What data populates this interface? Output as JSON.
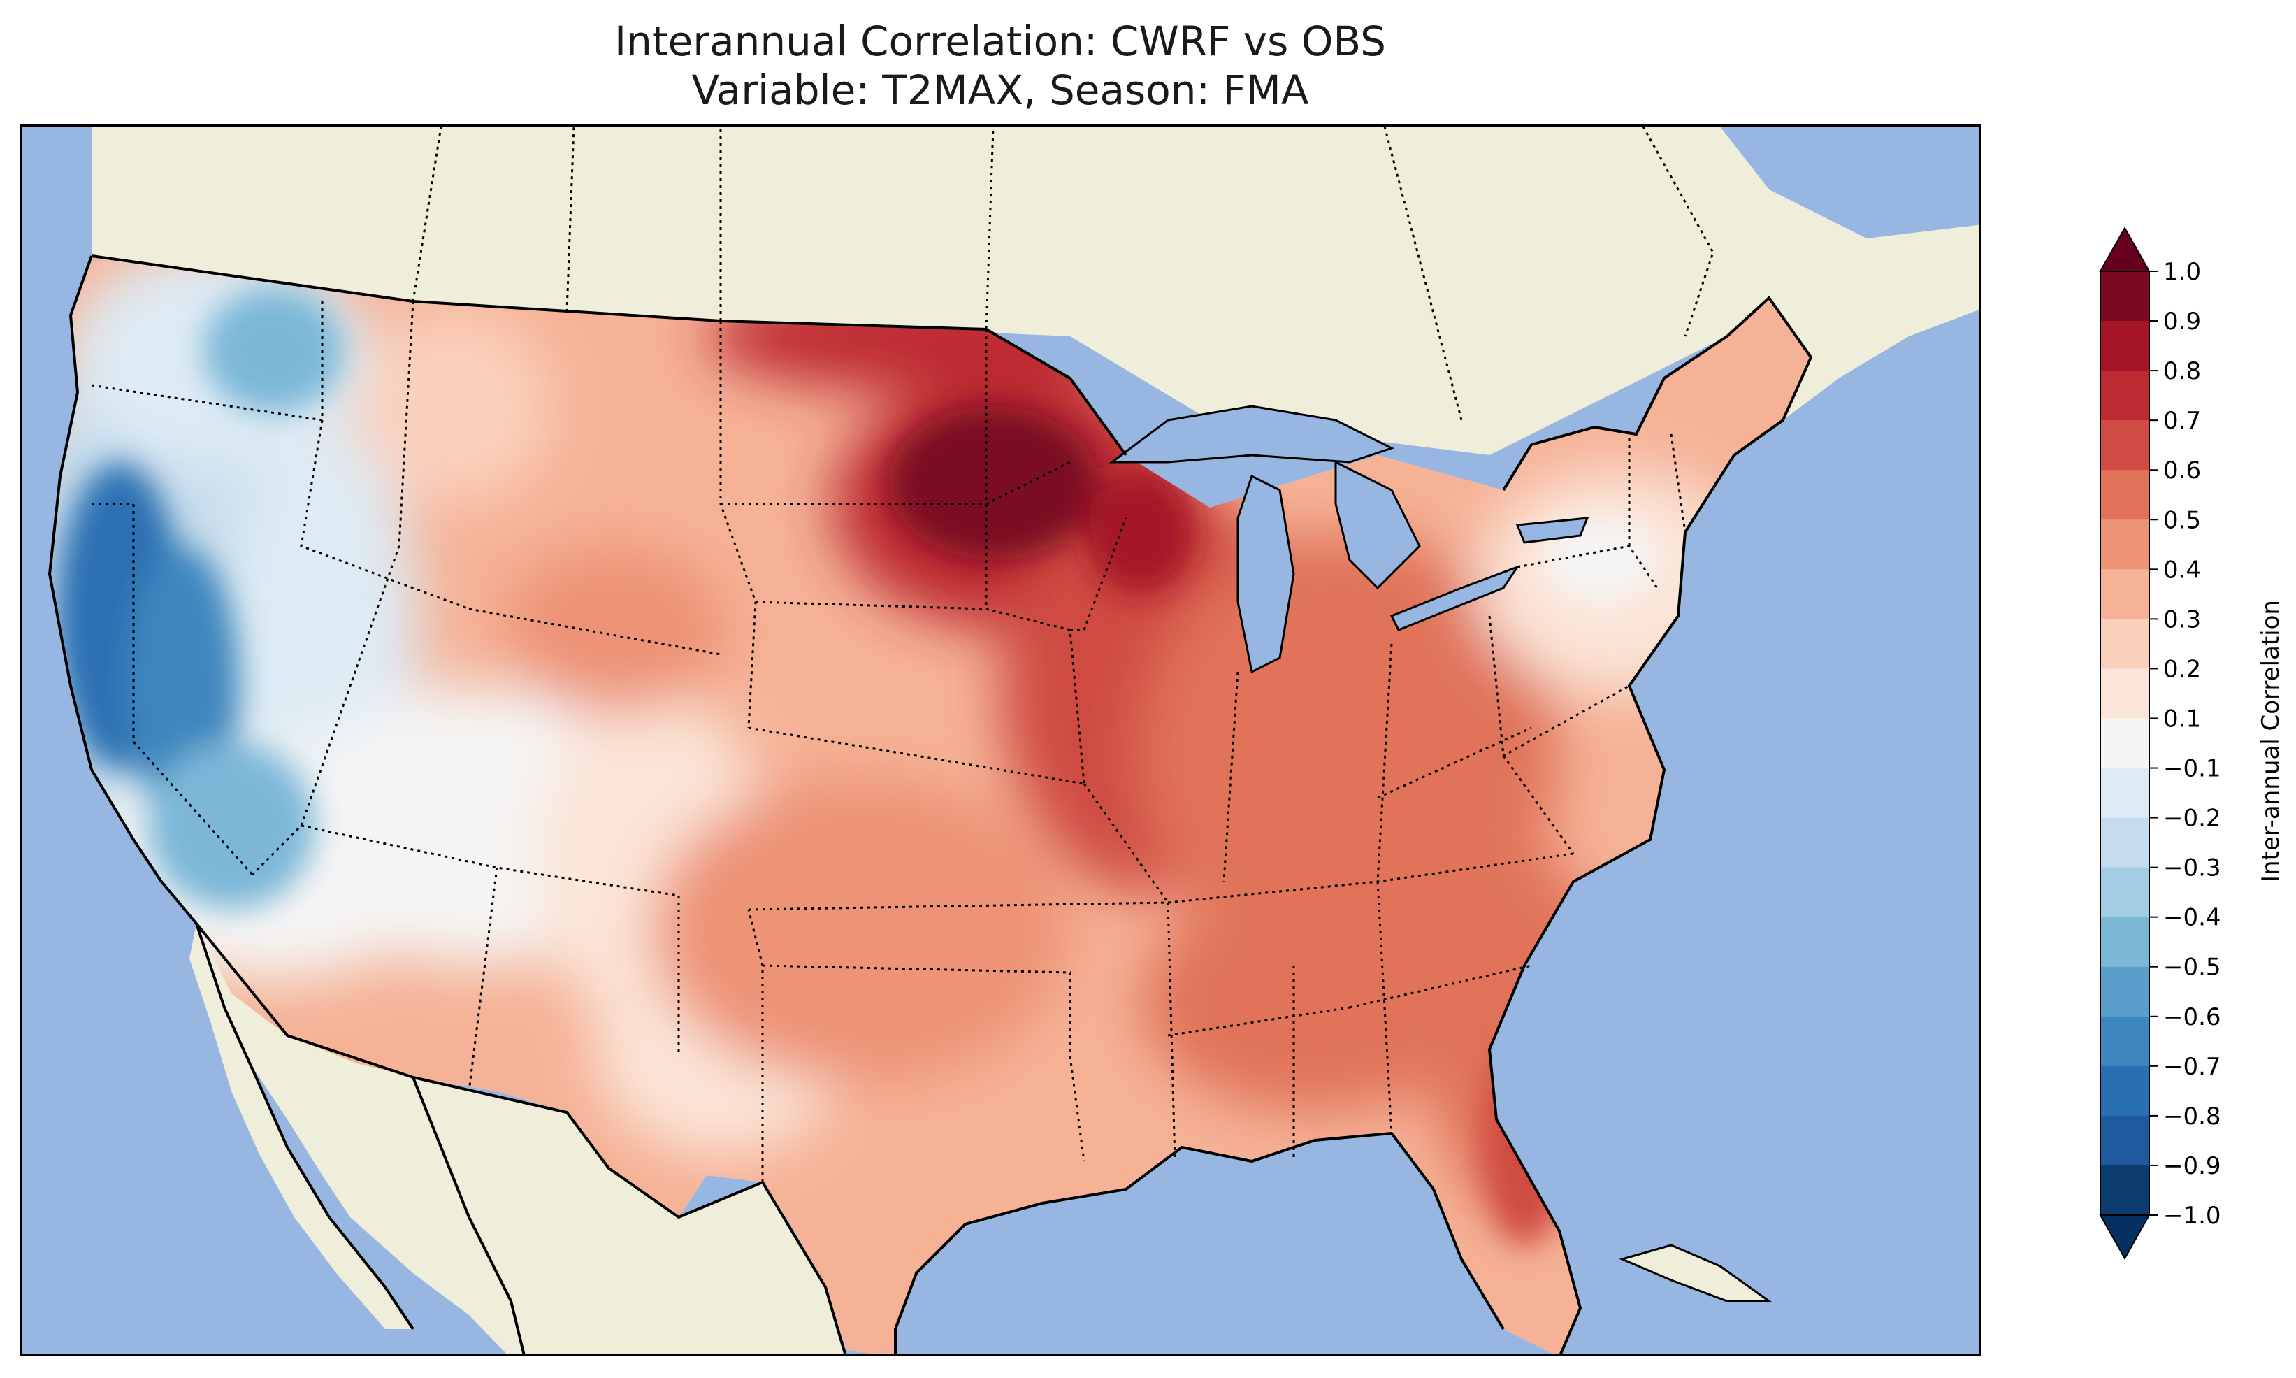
{
  "title": {
    "line1": "Interannual Correlation: CWRF vs OBS",
    "line2": "Variable: T2MAX, Season: FMA"
  },
  "colorbar": {
    "label": "Inter-annual Correlation",
    "ticks": [
      "1.0",
      "0.9",
      "0.8",
      "0.7",
      "0.6",
      "0.5",
      "0.4",
      "0.3",
      "0.2",
      "0.1",
      "−0.1",
      "−0.2",
      "−0.3",
      "−0.4",
      "−0.5",
      "−0.6",
      "−0.7",
      "−0.8",
      "−0.9",
      "−1.0"
    ],
    "levels": [
      0.9,
      0.8,
      0.7,
      0.6,
      0.5,
      0.4,
      0.3,
      0.2,
      0.1,
      0.0,
      -0.1,
      -0.2,
      -0.3,
      -0.4,
      -0.5,
      -0.6,
      -0.7,
      -0.8,
      -0.9,
      -1.0
    ],
    "colors": [
      "#7a0a22",
      "#a51527",
      "#be2a32",
      "#cf4b43",
      "#e0735a",
      "#ed9376",
      "#f5b296",
      "#fad0bb",
      "#fbe5d8",
      "#f5f5f5",
      "#deebf4",
      "#c6dcec",
      "#a3cde3",
      "#7cb7d8",
      "#5a9fcc",
      "#3d86be",
      "#2a6fb2",
      "#1f5a9e",
      "#0c3b6e"
    ],
    "extend": "both"
  },
  "map": {
    "ocean_color": "#97b6e1",
    "land_color": "#efeedb",
    "region": "CONUS",
    "correlation_pattern": [
      {
        "region": "West Coast (California, Oregon)",
        "value": -0.7
      },
      {
        "region": "Nevada / Great Basin",
        "value": -0.3
      },
      {
        "region": "Washington",
        "value": -0.2
      },
      {
        "region": "Arizona / Utah",
        "value": 0.0
      },
      {
        "region": "Rocky Mountains",
        "value": 0.3
      },
      {
        "region": "Great Plains",
        "value": 0.3
      },
      {
        "region": "Upper Midwest (Minnesota, Wisconsin)",
        "value": 0.8
      },
      {
        "region": "Iowa / Illinois",
        "value": 0.6
      },
      {
        "region": "Texas",
        "value": 0.3
      },
      {
        "region": "Southeast",
        "value": 0.5
      },
      {
        "region": "Florida",
        "value": 0.6
      },
      {
        "region": "Northeast",
        "value": 0.1
      }
    ]
  }
}
